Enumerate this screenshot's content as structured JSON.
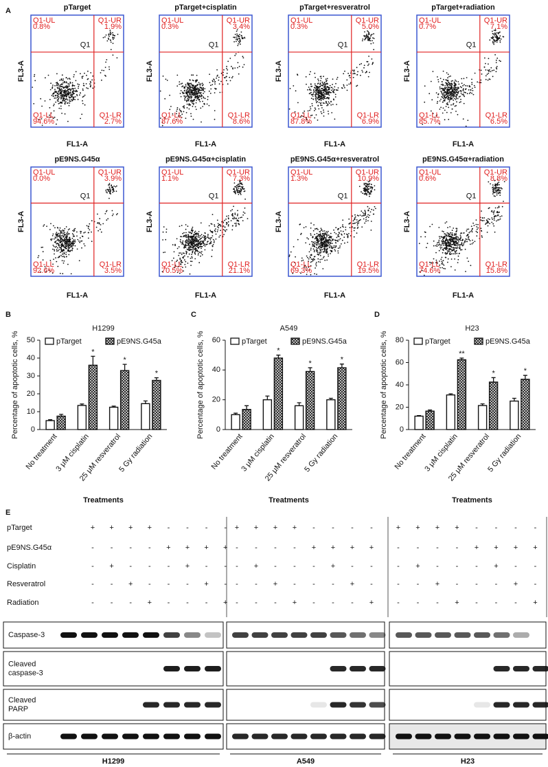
{
  "panel_a": {
    "label": "A",
    "x_axis": "FL1-A",
    "y_axis": "FL3-A",
    "gate": "Q1",
    "quadrant_names": [
      "Q1-UL",
      "Q1-UR",
      "Q1-LL",
      "Q1-LR"
    ],
    "plots": [
      {
        "title": "pTarget",
        "UL": "0.8%",
        "UR": "1.9%",
        "LL": "94.6%",
        "LR": "2.7%"
      },
      {
        "title": "pTarget+cisplatin",
        "UL": "0.3%",
        "UR": "3.4%",
        "LL": "87.6%",
        "LR": "8.6%"
      },
      {
        "title": "pTarget+resveratrol",
        "UL": "0.3%",
        "UR": "5.0%",
        "LL": "87.8%",
        "LR": "6.9%"
      },
      {
        "title": "pTarget+radiation",
        "UL": "0.7%",
        "UR": "7.1%",
        "LL": "85.7%",
        "LR": "6.5%"
      },
      {
        "title": "pE9NS.G45α",
        "UL": "0.0%",
        "UR": "3.9%",
        "LL": "92.6%",
        "LR": "3.5%"
      },
      {
        "title": "pE9NS.G45α+cisplatin",
        "UL": "1.1%",
        "UR": "7.3%",
        "LL": "70.5%",
        "LR": "21.1%"
      },
      {
        "title": "pE9NS.G45α+resveratrol",
        "UL": "1.3%",
        "UR": "10.9%",
        "LL": "69.3%",
        "LR": "19.5%"
      },
      {
        "title": "pE9NS.G45α+radiation",
        "UL": "0.6%",
        "UR": "8.8%",
        "LL": "74.6%",
        "LR": "15.8%"
      }
    ]
  },
  "chart_data": [
    {
      "label": "B",
      "type": "bar",
      "title": "H1299",
      "y_label": "Percentage of apoptotic cells, %",
      "x_label": "Treatments",
      "categories": [
        "No treatment",
        "3 μM cisplatin",
        "25 μM resveratrol",
        "5 Gy radiation"
      ],
      "series": [
        {
          "name": "pTarget",
          "color": "#ffffff",
          "hatch": false,
          "values": [
            5,
            13.5,
            12.5,
            14.5
          ],
          "errors": [
            0.5,
            0.8,
            0.6,
            1.5
          ]
        },
        {
          "name": "pE9NS.G45a",
          "color": "#222222",
          "hatch": true,
          "values": [
            7.5,
            36,
            33,
            27.5
          ],
          "errors": [
            1,
            5,
            3.5,
            1.5
          ]
        }
      ],
      "significance": [
        null,
        "*",
        "*",
        "*"
      ],
      "ylim": [
        0,
        50
      ],
      "yticks": [
        0,
        10,
        20,
        30,
        40,
        50
      ]
    },
    {
      "label": "C",
      "type": "bar",
      "title": "A549",
      "y_label": "Percentage of apoptotic cells, %",
      "x_label": "Treatments",
      "categories": [
        "No treatment",
        "3 μM cisplatin",
        "25 μM resveratrol",
        "5 Gy radiation"
      ],
      "series": [
        {
          "name": "pTarget",
          "color": "#ffffff",
          "hatch": false,
          "values": [
            10,
            20,
            16,
            20
          ],
          "errors": [
            1,
            2.5,
            2,
            1
          ]
        },
        {
          "name": "pE9NS.G45a",
          "color": "#222222",
          "hatch": true,
          "values": [
            13.5,
            48,
            39,
            41.5
          ],
          "errors": [
            2.5,
            2,
            2.5,
            2.5
          ]
        }
      ],
      "significance": [
        null,
        "*",
        "*",
        "*"
      ],
      "ylim": [
        0,
        60
      ],
      "yticks": [
        0,
        20,
        40,
        60
      ]
    },
    {
      "label": "D",
      "type": "bar",
      "title": "H23",
      "y_label": "Percentage of apoptotic cells, %",
      "x_label": "Treatments",
      "categories": [
        "No treatment",
        "3 μM cisplatin",
        "25 μM resveratrol",
        "5 Gy radiation"
      ],
      "series": [
        {
          "name": "pTarget",
          "color": "#ffffff",
          "hatch": false,
          "values": [
            12,
            31,
            21.5,
            25.5
          ],
          "errors": [
            0.5,
            1,
            1.5,
            2.5
          ]
        },
        {
          "name": "pE9NS.G45a",
          "color": "#222222",
          "hatch": true,
          "values": [
            16.5,
            62.5,
            42.5,
            45
          ],
          "errors": [
            1,
            1.5,
            4,
            3.5
          ]
        }
      ],
      "significance": [
        null,
        "**",
        "*",
        "*"
      ],
      "ylim": [
        0,
        80
      ],
      "yticks": [
        0,
        20,
        40,
        60,
        80
      ]
    }
  ],
  "panel_e": {
    "label": "E",
    "treatments": [
      "pTarget",
      "pE9NS.G45α",
      "Cisplatin",
      "Resveratrol",
      "Radiation"
    ],
    "groups": [
      {
        "name": "H1299",
        "signs": [
          [
            "+",
            "+",
            "+",
            "+",
            "-",
            "-",
            "-",
            "-"
          ],
          [
            "-",
            "-",
            "-",
            "-",
            "+",
            "+",
            "+",
            "+"
          ],
          [
            "-",
            "+",
            "-",
            "-",
            "-",
            "+",
            "-",
            "-"
          ],
          [
            "-",
            "-",
            "+",
            "-",
            "-",
            "-",
            "+",
            "-"
          ],
          [
            "-",
            "-",
            "-",
            "+",
            "-",
            "-",
            "-",
            "+"
          ]
        ]
      },
      {
        "name": "A549",
        "signs": [
          [
            "+",
            "+",
            "+",
            "+",
            "-",
            "-",
            "-",
            "-"
          ],
          [
            "-",
            "-",
            "-",
            "-",
            "+",
            "+",
            "+",
            "+"
          ],
          [
            "-",
            "+",
            "-",
            "-",
            "-",
            "+",
            "-",
            "-"
          ],
          [
            "-",
            "-",
            "+",
            "-",
            "-",
            "-",
            "+",
            "-"
          ],
          [
            "-",
            "-",
            "-",
            "+",
            "-",
            "-",
            "-",
            "+"
          ]
        ]
      },
      {
        "name": "H23",
        "signs": [
          [
            "+",
            "+",
            "+",
            "+",
            "-",
            "-",
            "-",
            "-"
          ],
          [
            "-",
            "-",
            "-",
            "-",
            "+",
            "+",
            "+",
            "+"
          ],
          [
            "-",
            "+",
            "-",
            "-",
            "-",
            "+",
            "-",
            "-"
          ],
          [
            "-",
            "-",
            "+",
            "-",
            "-",
            "-",
            "+",
            "-"
          ],
          [
            "-",
            "-",
            "-",
            "+",
            "-",
            "-",
            "-",
            "+"
          ]
        ]
      }
    ],
    "blots": [
      [
        "Caspase-3"
      ],
      [
        "Cleaved",
        "caspase-3"
      ],
      [
        "Cleaved",
        "PARP"
      ],
      [
        "β-actin"
      ]
    ]
  }
}
